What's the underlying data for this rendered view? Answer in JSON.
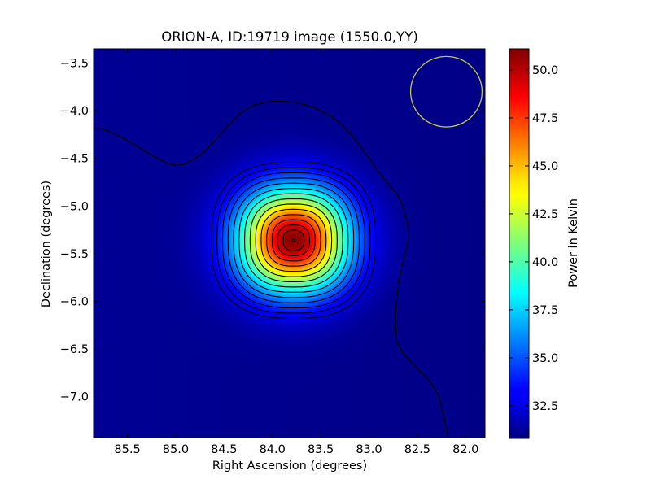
{
  "chart_data": {
    "type": "heatmap",
    "title": "ORION-A, ID:19719 image (1550.0,YY)",
    "xlabel": "Right Ascension (degrees)",
    "ylabel": "Declination (degrees)",
    "x_axis_reversed": true,
    "xlim": [
      85.85,
      81.8
    ],
    "ylim": [
      -7.43,
      -3.35
    ],
    "xticks": [
      85.5,
      85.0,
      84.5,
      84.0,
      83.5,
      83.0,
      82.5,
      82.0
    ],
    "xtick_labels": [
      "85.5",
      "85.0",
      "84.5",
      "84.0",
      "83.5",
      "83.0",
      "82.5",
      "82.0"
    ],
    "yticks": [
      -3.5,
      -4.0,
      -4.5,
      -5.0,
      -5.5,
      -6.0,
      -6.5,
      -7.0
    ],
    "ytick_labels": [
      "−3.5",
      "−4.0",
      "−4.5",
      "−5.0",
      "−5.5",
      "−6.0",
      "−6.5",
      "−7.0"
    ],
    "colormap": "jet",
    "colorbar": {
      "label": "Power in Kelvin",
      "range": [
        30.8,
        51.1
      ],
      "ticks": [
        32.5,
        35.0,
        37.5,
        40.0,
        42.5,
        45.0,
        47.5,
        50.0
      ],
      "tick_labels": [
        "32.5",
        "35.0",
        "37.5",
        "40.0",
        "42.5",
        "45.0",
        "47.5",
        "50.0"
      ]
    },
    "source": {
      "ra": 83.78,
      "dec": -5.36,
      "peak": 51.1,
      "background": 31.2
    },
    "contours": {
      "color": "#000000",
      "count": 14
    },
    "beam_circle": {
      "ra": 82.2,
      "dec": -3.8,
      "radius_deg": 0.37,
      "color": "#c8c83a"
    },
    "grid": false
  }
}
